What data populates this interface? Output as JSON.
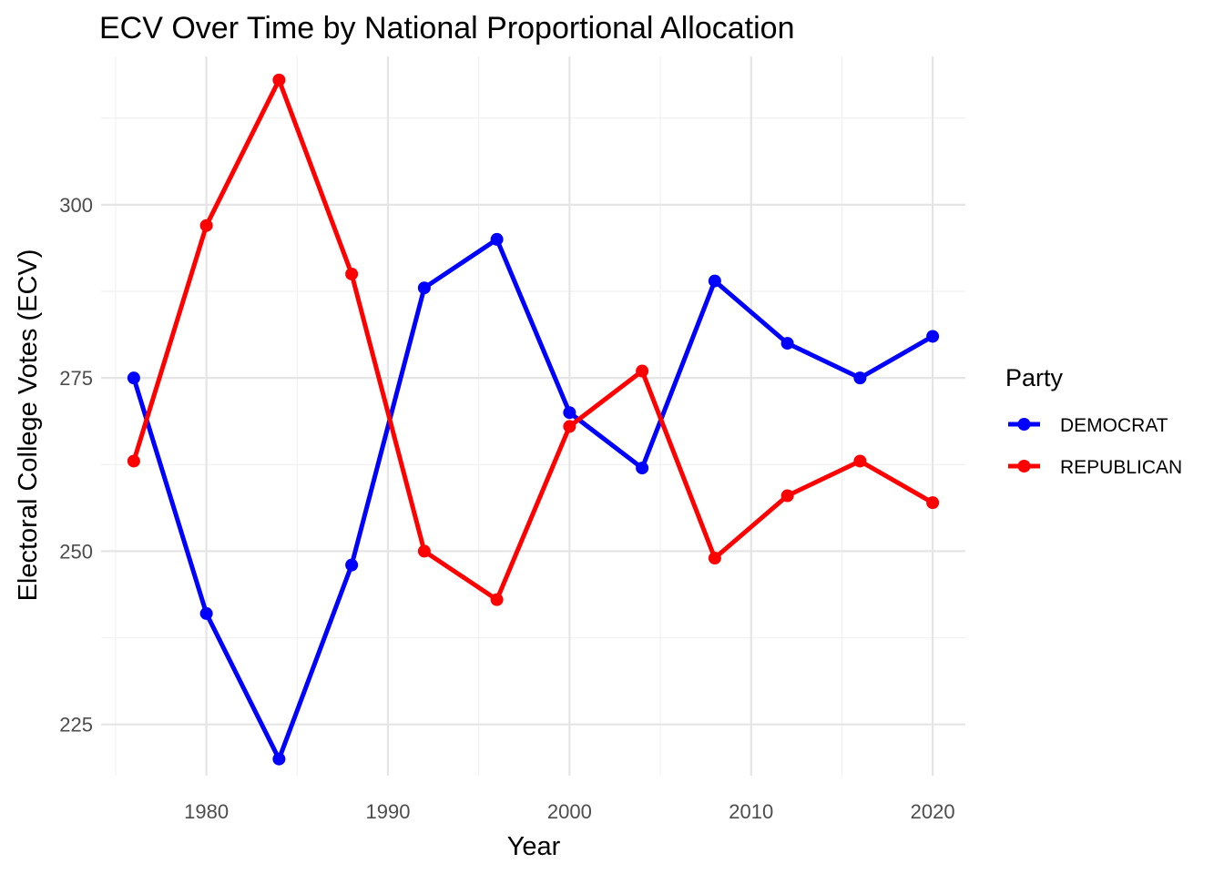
{
  "chart_data": {
    "type": "line",
    "title": "ECV Over Time by National Proportional Allocation",
    "xlabel": "Year",
    "ylabel": "Electoral College Votes (ECV)",
    "x": [
      1976,
      1980,
      1984,
      1988,
      1992,
      1996,
      2000,
      2004,
      2008,
      2012,
      2016,
      2020
    ],
    "xlim": [
      1974.2,
      2021.8
    ],
    "ylim": [
      217.6,
      321.4
    ],
    "x_ticks": [
      1980,
      1990,
      2000,
      2010,
      2020
    ],
    "y_ticks": [
      225,
      250,
      275,
      300
    ],
    "x_minor_ticks": [
      1975,
      1985,
      1995,
      2005,
      2015
    ],
    "y_minor_ticks": [
      237.5,
      262.5,
      287.5,
      312.5
    ],
    "grid": true,
    "legend": {
      "title": "Party",
      "placement": "right"
    },
    "series": [
      {
        "name": "DEMOCRAT",
        "color": "#0000ff",
        "values": [
          275,
          241,
          220,
          248,
          288,
          295,
          270,
          262,
          289,
          280,
          275,
          281
        ]
      },
      {
        "name": "REPUBLICAN",
        "color": "#ff0000",
        "values": [
          263,
          297,
          318,
          290,
          250,
          243,
          268,
          276,
          249,
          258,
          263,
          257
        ]
      }
    ]
  }
}
